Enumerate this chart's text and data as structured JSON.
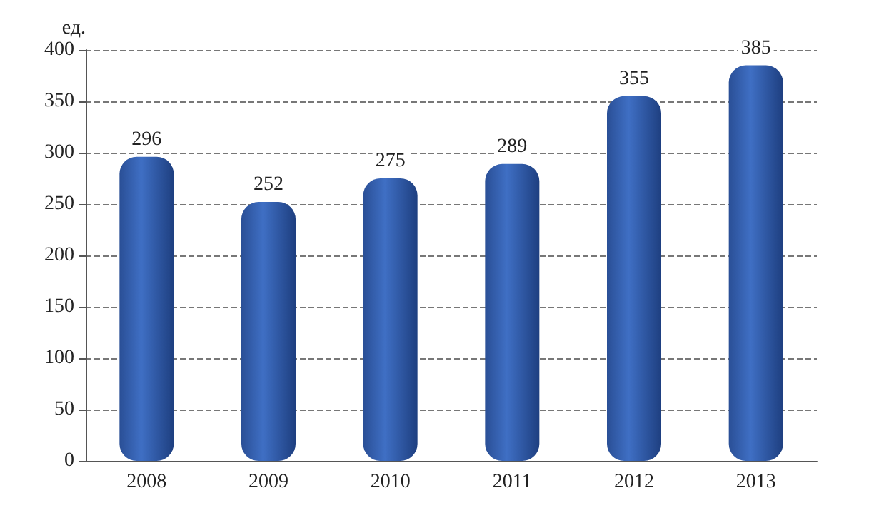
{
  "chart_data": {
    "type": "bar",
    "ylabel": "ед.",
    "categories": [
      "2008",
      "2009",
      "2010",
      "2011",
      "2012",
      "2013"
    ],
    "values": [
      296,
      252,
      275,
      289,
      355,
      385
    ],
    "color": "#3f6fc4",
    "ylim": [
      0,
      400
    ],
    "yticks": [
      0,
      50,
      100,
      150,
      200,
      250,
      300,
      350,
      400
    ],
    "grid": "y",
    "data_labels": true
  }
}
